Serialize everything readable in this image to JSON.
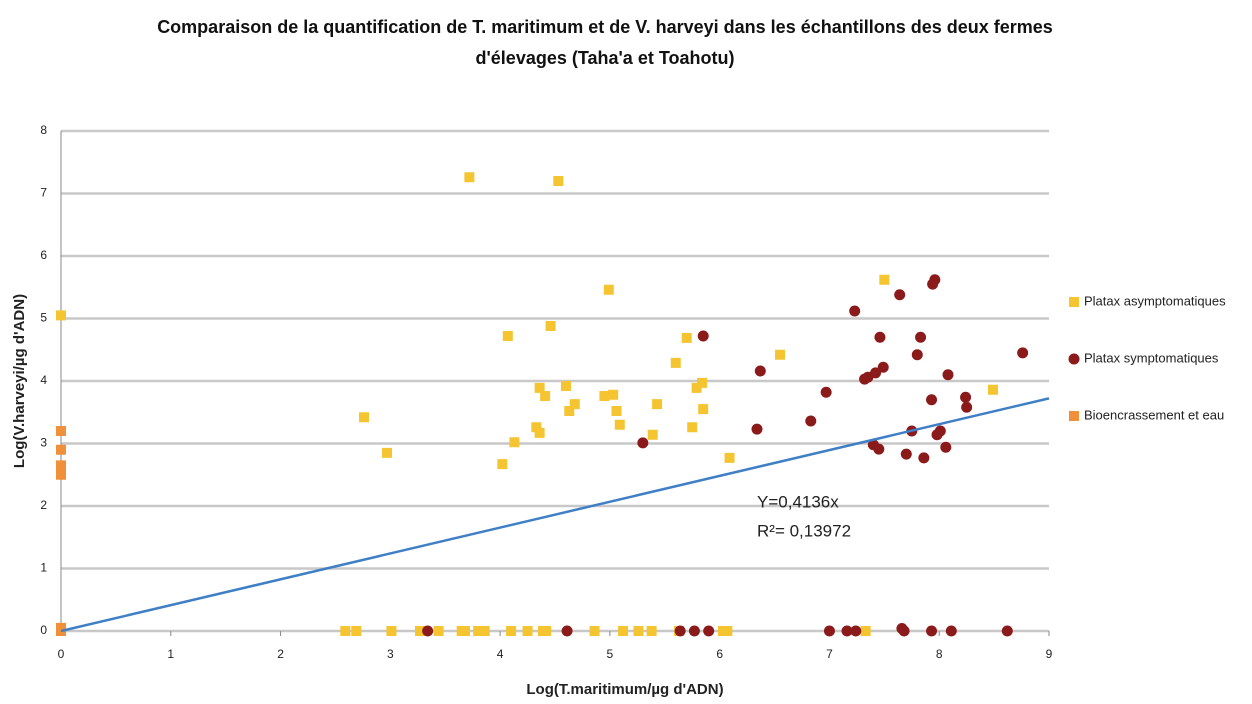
{
  "chart_data": {
    "type": "scatter",
    "title": "Comparaison de la quantification de T. maritimum et de V. harveyi dans les échantillons des deux fermes d'élevages (Taha'a et Toahotu)",
    "x_label": "Log(T.maritimum/µg d'ADN)",
    "y_label": "Log(V.harveyi/µg d'ADN)",
    "xlim": [
      0,
      9
    ],
    "xticks": [
      0,
      1,
      2,
      3,
      4,
      5,
      6,
      7,
      8,
      9
    ],
    "ylim": [
      0,
      8
    ],
    "yticks": [
      0,
      1,
      2,
      3,
      4,
      5,
      6,
      7,
      8
    ],
    "grid": true,
    "legend": "right",
    "series": [
      {
        "name": "Platax asymptomatiques",
        "color": "#f5c431",
        "marker": "square",
        "x": [
          0,
          0,
          2.76,
          2.97,
          3.72,
          4.53,
          4.02,
          4.07,
          4.13,
          4.33,
          4.36,
          4.36,
          4.41,
          4.46,
          4.6,
          4.63,
          4.68,
          4.95,
          4.99,
          5.03,
          5.06,
          5.09,
          5.39,
          5.43,
          5.6,
          5.7,
          5.75,
          5.79,
          5.84,
          5.85,
          6.09,
          6.55,
          7.5,
          8.49,
          2.59,
          2.69,
          3.01,
          3.27,
          3.44,
          3.65,
          3.68,
          3.8,
          3.86,
          4.1,
          4.25,
          4.39,
          4.42,
          4.86,
          5.12,
          5.26,
          5.38,
          5.63,
          6.03,
          6.07,
          7.33
        ],
        "values": [
          5.05,
          0,
          3.42,
          2.85,
          7.26,
          7.2,
          2.67,
          4.72,
          3.02,
          3.26,
          3.17,
          3.89,
          3.76,
          4.88,
          3.92,
          3.52,
          3.63,
          3.76,
          5.46,
          3.78,
          3.52,
          3.3,
          3.14,
          3.63,
          4.29,
          4.69,
          3.26,
          3.89,
          3.97,
          3.55,
          2.77,
          4.42,
          5.62,
          3.86,
          0,
          0,
          0,
          0,
          0,
          0,
          0,
          0,
          0,
          0,
          0,
          0,
          0,
          0,
          0,
          0,
          0,
          0,
          0,
          0,
          0
        ]
      },
      {
        "name": "Platax symptomatiques",
        "color": "#8b1a1a",
        "marker": "circle",
        "x": [
          5.3,
          5.85,
          6.37,
          6.34,
          6.83,
          6.97,
          7.23,
          7.32,
          7.35,
          7.4,
          7.42,
          7.45,
          7.46,
          7.49,
          7.64,
          7.7,
          7.75,
          7.8,
          7.83,
          7.86,
          7.94,
          7.96,
          7.93,
          7.98,
          8.01,
          8.06,
          8.08,
          8.24,
          8.25,
          8.76,
          3.34,
          4.61,
          5.64,
          5.77,
          5.9,
          7.0,
          7.16,
          7.24,
          7.66,
          7.68,
          7.93,
          8.11,
          8.62
        ],
        "values": [
          3.01,
          4.72,
          4.16,
          3.23,
          3.36,
          3.82,
          5.12,
          4.03,
          4.06,
          2.98,
          4.13,
          2.91,
          4.7,
          4.22,
          5.38,
          2.83,
          3.2,
          4.42,
          4.7,
          2.77,
          5.55,
          5.62,
          3.7,
          3.14,
          3.2,
          2.94,
          4.1,
          3.74,
          3.58,
          4.45,
          0,
          0,
          0,
          0,
          0,
          0,
          0,
          0,
          0.04,
          0,
          0,
          0,
          0
        ]
      },
      {
        "name": "Bioencrassement et eau",
        "color": "#f0903a",
        "marker": "square",
        "x": [
          0,
          0,
          0,
          0,
          0,
          0,
          0
        ],
        "values": [
          3.2,
          2.9,
          2.65,
          2.55,
          2.5,
          0.05,
          0
        ]
      }
    ],
    "trendline": {
      "slope": 0.4136,
      "color": "#3f7fc6",
      "equation": "Y=0,4136x",
      "r2": "R²= 0,13972"
    }
  }
}
